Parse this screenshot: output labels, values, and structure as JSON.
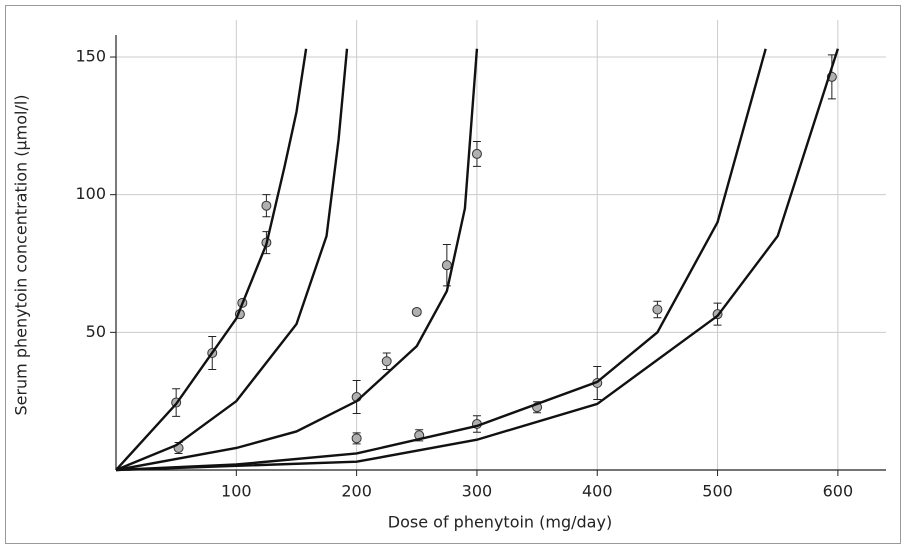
{
  "chart_data": {
    "type": "scatter",
    "xlabel": "Dose of phenytoin (mg/day)",
    "ylabel": "Serum phenytoin concentration (µmol/l)",
    "xlim": [
      0,
      640
    ],
    "ylim": [
      0,
      158
    ],
    "xticks": [
      100,
      200,
      300,
      400,
      500,
      600
    ],
    "yticks": [
      50,
      100,
      150
    ],
    "grid": true,
    "series": [
      {
        "mode": "markers",
        "color": "#b0b0b0",
        "x": [
          50,
          52,
          80,
          103,
          105,
          125,
          125,
          200,
          200,
          225,
          250,
          252,
          275,
          300,
          300,
          350,
          400,
          450,
          500,
          595
        ],
        "values": [
          24.5,
          8,
          42.5,
          56.6,
          60.7,
          82.6,
          96,
          26.5,
          11.5,
          39.5,
          57.4,
          12.6,
          74.4,
          114.8,
          16.7,
          22.8,
          31.6,
          58.3,
          56.6,
          142.8
        ],
        "errors": [
          5,
          2,
          6,
          1,
          1,
          4,
          4,
          6,
          2,
          3,
          1,
          2,
          7.5,
          4.5,
          3,
          2,
          6,
          3,
          4,
          8
        ]
      },
      {
        "mode": "lines",
        "color": "#111111",
        "x": [
          0,
          50,
          100,
          125,
          140,
          150,
          158
        ],
        "values": [
          0,
          24,
          55,
          82,
          110,
          130,
          153
        ]
      },
      {
        "mode": "lines",
        "color": "#111111",
        "x": [
          0,
          50,
          100,
          150,
          175,
          185,
          192
        ],
        "values": [
          0,
          9,
          25,
          53,
          85,
          120,
          153
        ]
      },
      {
        "mode": "lines",
        "color": "#111111",
        "x": [
          0,
          100,
          150,
          200,
          250,
          275,
          290,
          300
        ],
        "values": [
          0,
          8,
          14,
          25,
          45,
          65,
          95,
          153
        ]
      },
      {
        "mode": "lines",
        "color": "#111111",
        "x": [
          0,
          100,
          200,
          300,
          400,
          450,
          500,
          540
        ],
        "values": [
          0,
          2,
          6,
          16,
          32,
          50,
          90,
          153
        ]
      },
      {
        "mode": "lines",
        "color": "#111111",
        "x": [
          0,
          200,
          300,
          400,
          500,
          550,
          600
        ],
        "values": [
          0,
          3,
          11,
          24,
          56,
          85,
          153
        ]
      }
    ]
  }
}
